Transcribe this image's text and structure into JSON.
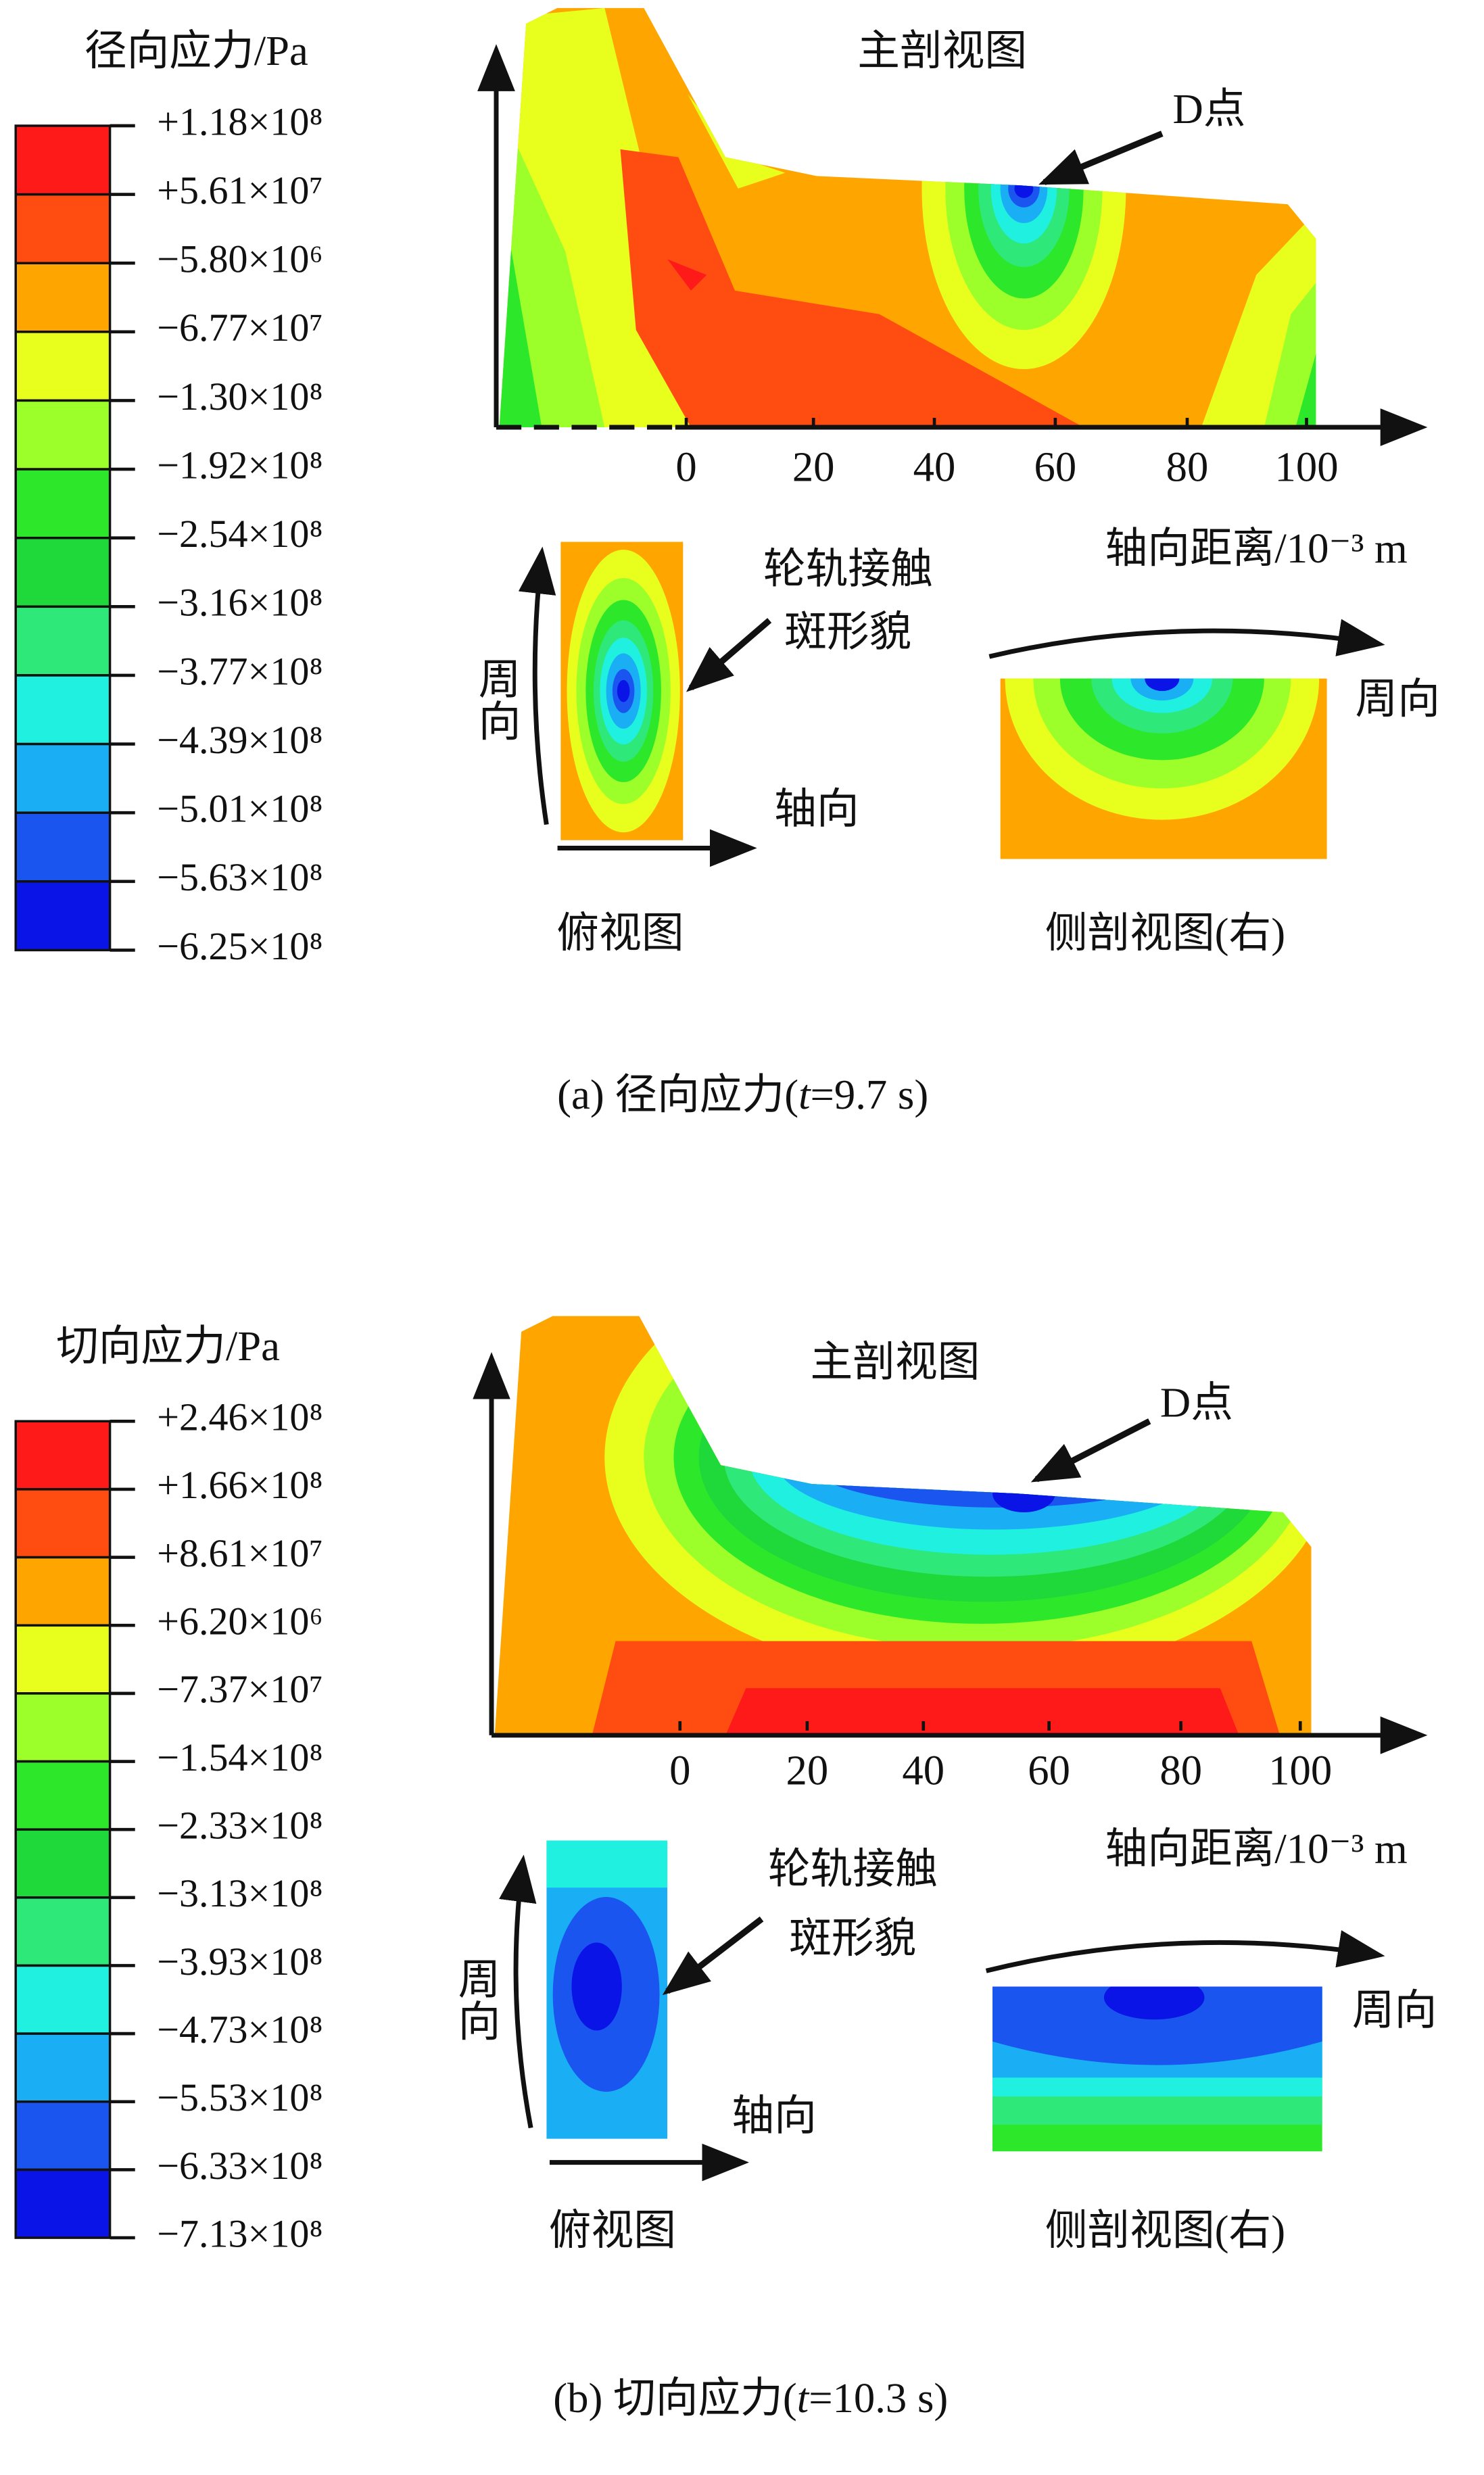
{
  "panels": [
    {
      "legend_title": "径向应力/Pa",
      "legend_labels": [
        "+1.18×10⁸",
        "+5.61×10⁷",
        "−5.80×10⁶",
        "−6.77×10⁷",
        "−1.30×10⁸",
        "−1.92×10⁸",
        "−2.54×10⁸",
        "−3.16×10⁸",
        "−3.77×10⁸",
        "−4.39×10⁸",
        "−5.01×10⁸",
        "−5.63×10⁸",
        "−6.25×10⁸"
      ],
      "legend_colors": [
        "#ff1a1a",
        "#ff4d12",
        "#ffa500",
        "#e8ff1e",
        "#9cff2a",
        "#2de82a",
        "#1fd83a",
        "#2ee87a",
        "#1ff0e0",
        "#1aaff5",
        "#1a55f0",
        "#0a14e6"
      ],
      "main_title": "主剖视图",
      "d_label": "D点",
      "x_ticks": [
        "0",
        "20",
        "40",
        "60",
        "80",
        "100"
      ],
      "x_label": "轴向距离/10⁻³ m",
      "contact_label_1": "轮轨接触",
      "contact_label_2": "斑形貌",
      "circumferential": "周向",
      "axial": "轴向",
      "circumferential_side": "周向",
      "top_view_title": "俯视图",
      "side_view_title": "侧剖视图(右)",
      "caption": {
        "prefix": "(a) 径向应力(",
        "var": "t",
        "suffix": "=9.7 s)"
      }
    },
    {
      "legend_title": "切向应力/Pa",
      "legend_labels": [
        "+2.46×10⁸",
        "+1.66×10⁸",
        "+8.61×10⁷",
        "+6.20×10⁶",
        "−7.37×10⁷",
        "−1.54×10⁸",
        "−2.33×10⁸",
        "−3.13×10⁸",
        "−3.93×10⁸",
        "−4.73×10⁸",
        "−5.53×10⁸",
        "−6.33×10⁸",
        "−7.13×10⁸"
      ],
      "legend_colors": [
        "#ff1a1a",
        "#ff4d12",
        "#ffa500",
        "#e8ff1e",
        "#9cff2a",
        "#2de82a",
        "#1fd83a",
        "#2ee87a",
        "#1ff0e0",
        "#1aaff5",
        "#1a55f0",
        "#0a14e6"
      ],
      "main_title": "主剖视图",
      "d_label": "D点",
      "x_ticks": [
        "0",
        "20",
        "40",
        "60",
        "80",
        "100"
      ],
      "x_label": "轴向距离/10⁻³ m",
      "contact_label_1": "轮轨接触",
      "contact_label_2": "斑形貌",
      "circumferential": "周向",
      "axial": "轴向",
      "circumferential_side": "周向",
      "top_view_title": "俯视图",
      "side_view_title": "侧剖视图(右)",
      "caption": {
        "prefix": "(b) 切向应力(",
        "var": "t",
        "suffix": "=10.3 s)"
      }
    }
  ]
}
